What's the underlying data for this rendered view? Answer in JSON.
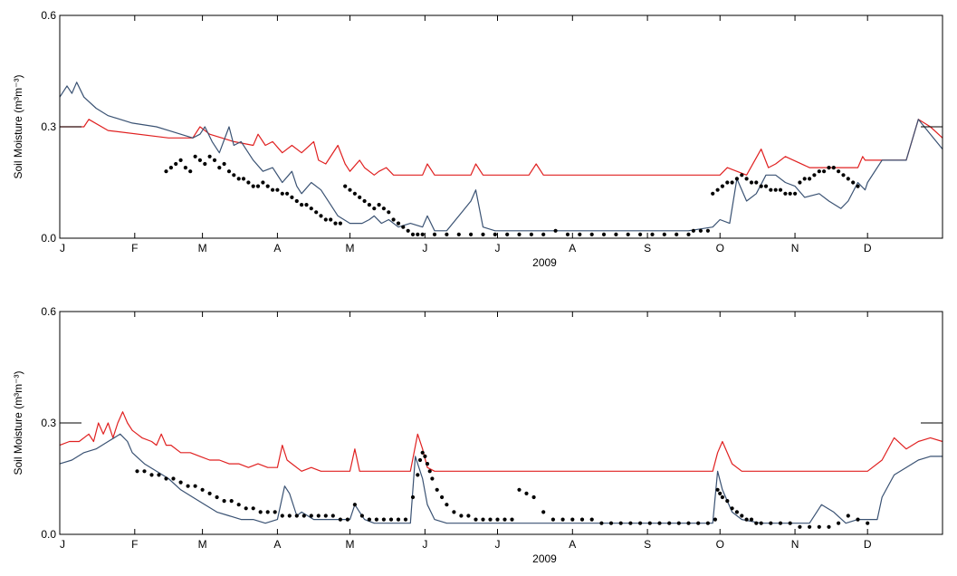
{
  "figure": {
    "top_title": "",
    "line_colors": {
      "red": "#e02020",
      "blue": "#3a5273",
      "dots": "#000000"
    }
  },
  "chart_data": [
    {
      "type": "line",
      "xlabel": "2009",
      "ylabel": "Soil Moisture (m³m⁻³)",
      "ylim": [
        0.0,
        0.6
      ],
      "yticks": [
        "0.0",
        "0.3",
        "0.6"
      ],
      "xlim": [
        0,
        365
      ],
      "month_ticks": [
        "J",
        "F",
        "M",
        "A",
        "M",
        "J",
        "J",
        "A",
        "S",
        "O",
        "N",
        "D"
      ],
      "month_days": [
        0,
        31,
        59,
        90,
        120,
        151,
        181,
        212,
        243,
        273,
        304,
        334
      ],
      "series": [
        {
          "color": "#e02020",
          "x": [
            0,
            10,
            12,
            20,
            45,
            55,
            58,
            62,
            72,
            80,
            82,
            85,
            88,
            92,
            96,
            100,
            105,
            107,
            110,
            115,
            118,
            120,
            124,
            126,
            130,
            132,
            135,
            138,
            140,
            145,
            150,
            152,
            155,
            160,
            170,
            172,
            175,
            180,
            190,
            194,
            197,
            200,
            210,
            260,
            270,
            273,
            276,
            280,
            284,
            290,
            293,
            296,
            300,
            310,
            320,
            325,
            330,
            332,
            333,
            334,
            350,
            355,
            360,
            365
          ],
          "y": [
            0.3,
            0.3,
            0.32,
            0.29,
            0.27,
            0.27,
            0.3,
            0.28,
            0.26,
            0.25,
            0.28,
            0.25,
            0.26,
            0.23,
            0.25,
            0.23,
            0.26,
            0.21,
            0.2,
            0.25,
            0.2,
            0.18,
            0.21,
            0.19,
            0.17,
            0.18,
            0.19,
            0.17,
            0.17,
            0.17,
            0.17,
            0.2,
            0.17,
            0.17,
            0.17,
            0.2,
            0.17,
            0.17,
            0.17,
            0.17,
            0.2,
            0.17,
            0.17,
            0.17,
            0.17,
            0.17,
            0.19,
            0.18,
            0.17,
            0.24,
            0.19,
            0.2,
            0.22,
            0.19,
            0.19,
            0.19,
            0.19,
            0.22,
            0.21,
            0.21,
            0.21,
            0.32,
            0.3,
            0.27
          ]
        },
        {
          "color": "#3a5273",
          "x": [
            0,
            3,
            5,
            7,
            10,
            15,
            20,
            30,
            40,
            45,
            55,
            58,
            60,
            63,
            66,
            70,
            72,
            75,
            80,
            84,
            88,
            92,
            96,
            98,
            100,
            104,
            108,
            112,
            115,
            120,
            125,
            128,
            130,
            133,
            136,
            140,
            145,
            150,
            152,
            155,
            158,
            160,
            165,
            170,
            172,
            175,
            180,
            190,
            200,
            210,
            260,
            270,
            273,
            277,
            280,
            284,
            288,
            292,
            296,
            300,
            304,
            308,
            314,
            318,
            323,
            326,
            330,
            333,
            334,
            340,
            350,
            355,
            360,
            365
          ],
          "y": [
            0.38,
            0.41,
            0.39,
            0.42,
            0.38,
            0.35,
            0.33,
            0.31,
            0.3,
            0.29,
            0.27,
            0.28,
            0.3,
            0.26,
            0.23,
            0.3,
            0.25,
            0.26,
            0.21,
            0.18,
            0.19,
            0.15,
            0.18,
            0.14,
            0.12,
            0.15,
            0.13,
            0.09,
            0.06,
            0.04,
            0.04,
            0.05,
            0.06,
            0.04,
            0.05,
            0.03,
            0.04,
            0.03,
            0.06,
            0.02,
            0.02,
            0.02,
            0.06,
            0.1,
            0.13,
            0.03,
            0.02,
            0.02,
            0.02,
            0.02,
            0.02,
            0.03,
            0.05,
            0.04,
            0.16,
            0.1,
            0.12,
            0.17,
            0.17,
            0.15,
            0.14,
            0.11,
            0.12,
            0.1,
            0.08,
            0.1,
            0.15,
            0.13,
            0.15,
            0.21,
            0.21,
            0.32,
            0.28,
            0.24
          ]
        },
        {
          "color": "#000000",
          "mode": "markers",
          "x": [
            44,
            46,
            48,
            50,
            52,
            54,
            56,
            58,
            60,
            62,
            64,
            66,
            68,
            70,
            72,
            74,
            76,
            78,
            80,
            82,
            84,
            86,
            88,
            90,
            92,
            94,
            96,
            98,
            100,
            102,
            104,
            106,
            108,
            110,
            112,
            114,
            116,
            118,
            120,
            122,
            124,
            126,
            128,
            130,
            132,
            134,
            136,
            138,
            140,
            142,
            144,
            146,
            148,
            150,
            155,
            160,
            165,
            170,
            175,
            180,
            185,
            190,
            195,
            200,
            205,
            210,
            215,
            220,
            225,
            230,
            235,
            240,
            245,
            250,
            255,
            260,
            262,
            265,
            268,
            270,
            272,
            274,
            276,
            278,
            280,
            282,
            284,
            286,
            288,
            290,
            292,
            294,
            296,
            298,
            300,
            302,
            304,
            306,
            308,
            310,
            312,
            314,
            316,
            318,
            320,
            322,
            324,
            326,
            328,
            330
          ],
          "y": [
            0.18,
            0.19,
            0.2,
            0.21,
            0.19,
            0.18,
            0.22,
            0.21,
            0.2,
            0.22,
            0.21,
            0.19,
            0.2,
            0.18,
            0.17,
            0.16,
            0.16,
            0.15,
            0.14,
            0.14,
            0.15,
            0.14,
            0.13,
            0.13,
            0.12,
            0.12,
            0.11,
            0.1,
            0.09,
            0.09,
            0.08,
            0.07,
            0.06,
            0.05,
            0.05,
            0.04,
            0.04,
            0.14,
            0.13,
            0.12,
            0.11,
            0.1,
            0.09,
            0.08,
            0.09,
            0.08,
            0.07,
            0.05,
            0.04,
            0.03,
            0.02,
            0.01,
            0.01,
            0.01,
            0.01,
            0.01,
            0.01,
            0.01,
            0.01,
            0.01,
            0.01,
            0.01,
            0.01,
            0.01,
            0.02,
            0.01,
            0.01,
            0.01,
            0.01,
            0.01,
            0.01,
            0.01,
            0.01,
            0.01,
            0.01,
            0.01,
            0.02,
            0.02,
            0.02,
            0.12,
            0.13,
            0.14,
            0.15,
            0.15,
            0.16,
            0.17,
            0.16,
            0.15,
            0.15,
            0.14,
            0.14,
            0.13,
            0.13,
            0.13,
            0.12,
            0.12,
            0.12,
            0.15,
            0.16,
            0.16,
            0.17,
            0.18,
            0.18,
            0.19,
            0.19,
            0.18,
            0.17,
            0.16,
            0.15,
            0.14
          ]
        }
      ]
    },
    {
      "type": "line",
      "xlabel": "2009",
      "ylabel": "Soil Moisture (m³m⁻³)",
      "ylim": [
        0.0,
        0.6
      ],
      "yticks": [
        "0.0",
        "0.3",
        "0.6"
      ],
      "xlim": [
        0,
        365
      ],
      "month_ticks": [
        "J",
        "F",
        "M",
        "A",
        "M",
        "J",
        "J",
        "A",
        "S",
        "O",
        "N",
        "D"
      ],
      "month_days": [
        0,
        31,
        59,
        90,
        120,
        151,
        181,
        212,
        243,
        273,
        304,
        334
      ],
      "series": [
        {
          "color": "#e02020",
          "x": [
            0,
            4,
            8,
            12,
            14,
            16,
            18,
            20,
            22,
            24,
            26,
            28,
            30,
            32,
            34,
            38,
            40,
            42,
            44,
            46,
            50,
            54,
            58,
            62,
            66,
            70,
            74,
            78,
            82,
            86,
            90,
            92,
            94,
            96,
            100,
            104,
            108,
            112,
            116,
            120,
            122,
            124,
            126,
            130,
            140,
            145,
            148,
            150,
            152,
            155,
            160,
            180,
            200,
            220,
            240,
            260,
            270,
            272,
            274,
            278,
            282,
            290,
            300,
            310,
            320,
            330,
            334,
            340,
            345,
            350,
            355,
            360,
            365
          ],
          "y": [
            0.24,
            0.25,
            0.25,
            0.27,
            0.25,
            0.3,
            0.27,
            0.3,
            0.26,
            0.3,
            0.33,
            0.3,
            0.28,
            0.27,
            0.26,
            0.25,
            0.24,
            0.27,
            0.24,
            0.24,
            0.22,
            0.22,
            0.21,
            0.2,
            0.2,
            0.19,
            0.19,
            0.18,
            0.19,
            0.18,
            0.18,
            0.24,
            0.2,
            0.19,
            0.17,
            0.18,
            0.17,
            0.17,
            0.17,
            0.17,
            0.23,
            0.17,
            0.17,
            0.17,
            0.17,
            0.17,
            0.27,
            0.23,
            0.18,
            0.17,
            0.17,
            0.17,
            0.17,
            0.17,
            0.17,
            0.17,
            0.17,
            0.22,
            0.25,
            0.19,
            0.17,
            0.17,
            0.17,
            0.17,
            0.17,
            0.17,
            0.17,
            0.2,
            0.26,
            0.23,
            0.25,
            0.26,
            0.25
          ]
        },
        {
          "color": "#3a5273",
          "x": [
            0,
            5,
            10,
            15,
            20,
            25,
            28,
            30,
            35,
            40,
            45,
            50,
            55,
            60,
            65,
            70,
            75,
            80,
            85,
            90,
            93,
            95,
            98,
            100,
            105,
            110,
            115,
            120,
            122,
            124,
            126,
            130,
            140,
            145,
            147,
            150,
            152,
            155,
            160,
            170,
            180,
            200,
            220,
            240,
            260,
            270,
            272,
            274,
            278,
            282,
            290,
            300,
            310,
            315,
            320,
            325,
            330,
            334,
            338,
            340,
            345,
            350,
            355,
            360,
            365
          ],
          "y": [
            0.19,
            0.2,
            0.22,
            0.23,
            0.25,
            0.27,
            0.25,
            0.22,
            0.19,
            0.17,
            0.15,
            0.12,
            0.1,
            0.08,
            0.06,
            0.05,
            0.04,
            0.04,
            0.03,
            0.04,
            0.13,
            0.11,
            0.05,
            0.06,
            0.04,
            0.04,
            0.04,
            0.04,
            0.08,
            0.06,
            0.04,
            0.03,
            0.03,
            0.03,
            0.21,
            0.15,
            0.08,
            0.04,
            0.03,
            0.03,
            0.03,
            0.03,
            0.03,
            0.03,
            0.03,
            0.03,
            0.17,
            0.12,
            0.06,
            0.04,
            0.03,
            0.03,
            0.03,
            0.08,
            0.06,
            0.03,
            0.04,
            0.04,
            0.04,
            0.1,
            0.16,
            0.18,
            0.2,
            0.21,
            0.21
          ]
        },
        {
          "color": "#000000",
          "mode": "markers",
          "x": [
            32,
            35,
            38,
            41,
            44,
            47,
            50,
            53,
            56,
            59,
            62,
            65,
            68,
            71,
            74,
            77,
            80,
            83,
            86,
            89,
            92,
            95,
            98,
            101,
            104,
            107,
            110,
            113,
            116,
            119,
            122,
            125,
            128,
            131,
            134,
            137,
            140,
            143,
            146,
            148,
            149,
            150,
            151,
            152,
            153,
            154,
            156,
            158,
            160,
            163,
            166,
            169,
            172,
            175,
            178,
            181,
            184,
            187,
            190,
            193,
            196,
            200,
            204,
            208,
            212,
            216,
            220,
            224,
            228,
            232,
            236,
            240,
            244,
            248,
            252,
            256,
            260,
            264,
            268,
            271,
            272,
            273,
            274,
            276,
            278,
            280,
            282,
            284,
            286,
            288,
            290,
            294,
            298,
            302,
            306,
            310,
            314,
            318,
            322,
            326,
            330,
            334
          ],
          "y": [
            0.17,
            0.17,
            0.16,
            0.16,
            0.15,
            0.15,
            0.14,
            0.13,
            0.13,
            0.12,
            0.11,
            0.1,
            0.09,
            0.09,
            0.08,
            0.07,
            0.07,
            0.06,
            0.06,
            0.06,
            0.05,
            0.05,
            0.05,
            0.05,
            0.05,
            0.05,
            0.05,
            0.05,
            0.04,
            0.04,
            0.08,
            0.05,
            0.04,
            0.04,
            0.04,
            0.04,
            0.04,
            0.04,
            0.1,
            0.16,
            0.2,
            0.22,
            0.21,
            0.19,
            0.17,
            0.15,
            0.12,
            0.1,
            0.08,
            0.06,
            0.05,
            0.05,
            0.04,
            0.04,
            0.04,
            0.04,
            0.04,
            0.04,
            0.12,
            0.11,
            0.1,
            0.06,
            0.04,
            0.04,
            0.04,
            0.04,
            0.04,
            0.03,
            0.03,
            0.03,
            0.03,
            0.03,
            0.03,
            0.03,
            0.03,
            0.03,
            0.03,
            0.03,
            0.03,
            0.04,
            0.12,
            0.11,
            0.1,
            0.09,
            0.07,
            0.06,
            0.05,
            0.04,
            0.04,
            0.03,
            0.03,
            0.03,
            0.03,
            0.03,
            0.02,
            0.02,
            0.02,
            0.02,
            0.03,
            0.05,
            0.04,
            0.03
          ]
        }
      ]
    }
  ]
}
